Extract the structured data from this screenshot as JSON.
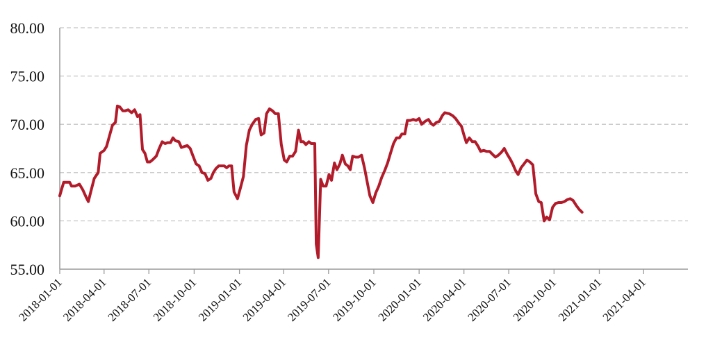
{
  "chart_data": {
    "type": "line",
    "title": "",
    "xlabel": "",
    "ylabel": "",
    "ylim": [
      55,
      80
    ],
    "y_ticks": [
      "55.00",
      "60.00",
      "65.00",
      "70.00",
      "75.00",
      "80.00"
    ],
    "x_tick_labels": [
      "2018-01-01",
      "2018-04-01",
      "2018-07-01",
      "2018-10-01",
      "2019-01-01",
      "2019-04-01",
      "2019-07-01",
      "2019-10-01",
      "2020-01-01",
      "2020-04-01",
      "2020-07-01",
      "2020-10-01",
      "2021-01-01",
      "2021-04-01"
    ],
    "x_range": [
      "2018-01-01",
      "2021-06-30"
    ],
    "grid": "horizontal dashed",
    "line_color": "#B11B2A",
    "series": [
      {
        "points": [
          [
            "2018-01-01",
            62.6
          ],
          [
            "2018-01-05",
            63.3
          ],
          [
            "2018-01-09",
            64.0
          ],
          [
            "2018-01-14",
            64.0
          ],
          [
            "2018-01-21",
            64.0
          ],
          [
            "2018-01-25",
            63.6
          ],
          [
            "2018-02-01",
            63.6
          ],
          [
            "2018-02-10",
            63.8
          ],
          [
            "2018-02-17",
            63.2
          ],
          [
            "2018-02-24",
            62.4
          ],
          [
            "2018-02-28",
            62.0
          ],
          [
            "2018-03-05",
            63.0
          ],
          [
            "2018-03-12",
            64.4
          ],
          [
            "2018-03-20",
            65.0
          ],
          [
            "2018-03-24",
            67.0
          ],
          [
            "2018-04-01",
            67.3
          ],
          [
            "2018-04-06",
            67.7
          ],
          [
            "2018-04-13",
            69.0
          ],
          [
            "2018-04-18",
            69.9
          ],
          [
            "2018-04-24",
            70.2
          ],
          [
            "2018-04-28",
            71.9
          ],
          [
            "2018-05-03",
            71.8
          ],
          [
            "2018-05-09",
            71.4
          ],
          [
            "2018-05-14",
            71.4
          ],
          [
            "2018-05-20",
            71.5
          ],
          [
            "2018-05-27",
            71.2
          ],
          [
            "2018-06-02",
            71.5
          ],
          [
            "2018-06-08",
            70.8
          ],
          [
            "2018-06-13",
            71.0
          ],
          [
            "2018-06-18",
            67.4
          ],
          [
            "2018-06-23",
            67.0
          ],
          [
            "2018-06-28",
            66.1
          ],
          [
            "2018-07-03",
            66.1
          ],
          [
            "2018-07-08",
            66.3
          ],
          [
            "2018-07-16",
            66.7
          ],
          [
            "2018-07-22",
            67.5
          ],
          [
            "2018-07-28",
            68.2
          ],
          [
            "2018-08-03",
            68.0
          ],
          [
            "2018-08-08",
            68.1
          ],
          [
            "2018-08-14",
            68.1
          ],
          [
            "2018-08-19",
            68.6
          ],
          [
            "2018-08-24",
            68.3
          ],
          [
            "2018-08-31",
            68.2
          ],
          [
            "2018-09-05",
            67.6
          ],
          [
            "2018-09-11",
            67.7
          ],
          [
            "2018-09-17",
            67.8
          ],
          [
            "2018-09-23",
            67.5
          ],
          [
            "2018-09-28",
            66.8
          ],
          [
            "2018-10-05",
            65.9
          ],
          [
            "2018-10-11",
            65.7
          ],
          [
            "2018-10-17",
            65.0
          ],
          [
            "2018-10-23",
            64.9
          ],
          [
            "2018-10-29",
            64.2
          ],
          [
            "2018-11-04",
            64.4
          ],
          [
            "2018-11-09",
            65.0
          ],
          [
            "2018-11-14",
            65.4
          ],
          [
            "2018-11-20",
            65.7
          ],
          [
            "2018-11-25",
            65.7
          ],
          [
            "2018-12-01",
            65.7
          ],
          [
            "2018-12-06",
            65.5
          ],
          [
            "2018-12-11",
            65.7
          ],
          [
            "2018-12-16",
            65.7
          ],
          [
            "2018-12-21",
            63.0
          ],
          [
            "2018-12-28",
            62.3
          ],
          [
            "2019-01-04",
            63.6
          ],
          [
            "2019-01-09",
            64.6
          ],
          [
            "2019-01-15",
            67.8
          ],
          [
            "2019-01-21",
            69.4
          ],
          [
            "2019-01-27",
            70.0
          ],
          [
            "2019-02-03",
            70.5
          ],
          [
            "2019-02-09",
            70.6
          ],
          [
            "2019-02-14",
            68.9
          ],
          [
            "2019-02-20",
            69.1
          ],
          [
            "2019-02-25",
            71.1
          ],
          [
            "2019-03-03",
            71.6
          ],
          [
            "2019-03-09",
            71.4
          ],
          [
            "2019-03-15",
            71.1
          ],
          [
            "2019-03-21",
            71.1
          ],
          [
            "2019-03-27",
            67.9
          ],
          [
            "2019-04-02",
            66.3
          ],
          [
            "2019-04-07",
            66.1
          ],
          [
            "2019-04-13",
            66.7
          ],
          [
            "2019-04-19",
            66.7
          ],
          [
            "2019-04-25",
            67.2
          ],
          [
            "2019-05-01",
            69.4
          ],
          [
            "2019-05-06",
            68.2
          ],
          [
            "2019-05-11",
            68.2
          ],
          [
            "2019-05-16",
            67.9
          ],
          [
            "2019-05-22",
            68.2
          ],
          [
            "2019-05-27",
            68.0
          ],
          [
            "2019-06-03",
            68.0
          ],
          [
            "2019-06-06",
            57.6
          ],
          [
            "2019-06-10",
            56.2
          ],
          [
            "2019-06-15",
            64.3
          ],
          [
            "2019-06-20",
            63.6
          ],
          [
            "2019-06-26",
            63.6
          ],
          [
            "2019-07-02",
            64.8
          ],
          [
            "2019-07-07",
            64.2
          ],
          [
            "2019-07-13",
            66.0
          ],
          [
            "2019-07-18",
            65.3
          ],
          [
            "2019-07-24",
            65.9
          ],
          [
            "2019-07-29",
            66.8
          ],
          [
            "2019-08-04",
            65.9
          ],
          [
            "2019-08-09",
            65.7
          ],
          [
            "2019-08-14",
            65.3
          ],
          [
            "2019-08-19",
            66.7
          ],
          [
            "2019-08-25",
            66.6
          ],
          [
            "2019-08-31",
            66.6
          ],
          [
            "2019-09-06",
            66.8
          ],
          [
            "2019-09-12",
            65.5
          ],
          [
            "2019-09-18",
            63.9
          ],
          [
            "2019-09-23",
            62.6
          ],
          [
            "2019-09-29",
            61.9
          ],
          [
            "2019-10-05",
            62.9
          ],
          [
            "2019-10-11",
            63.6
          ],
          [
            "2019-10-17",
            64.5
          ],
          [
            "2019-10-23",
            65.2
          ],
          [
            "2019-10-29",
            66.0
          ],
          [
            "2019-11-05",
            67.2
          ],
          [
            "2019-11-10",
            68.0
          ],
          [
            "2019-11-16",
            68.6
          ],
          [
            "2019-11-22",
            68.6
          ],
          [
            "2019-11-27",
            69.0
          ],
          [
            "2019-12-03",
            69.0
          ],
          [
            "2019-12-08",
            70.4
          ],
          [
            "2019-12-14",
            70.4
          ],
          [
            "2019-12-20",
            70.5
          ],
          [
            "2019-12-26",
            70.4
          ],
          [
            "2020-01-01",
            70.6
          ],
          [
            "2020-01-06",
            70.0
          ],
          [
            "2020-01-13",
            70.3
          ],
          [
            "2020-01-20",
            70.5
          ],
          [
            "2020-01-25",
            70.1
          ],
          [
            "2020-01-30",
            69.9
          ],
          [
            "2020-02-05",
            70.2
          ],
          [
            "2020-02-11",
            70.3
          ],
          [
            "2020-02-17",
            70.9
          ],
          [
            "2020-02-22",
            71.2
          ],
          [
            "2020-03-02",
            71.1
          ],
          [
            "2020-03-09",
            70.9
          ],
          [
            "2020-03-15",
            70.6
          ],
          [
            "2020-03-22",
            70.1
          ],
          [
            "2020-03-27",
            69.8
          ],
          [
            "2020-04-01",
            68.9
          ],
          [
            "2020-04-06",
            68.1
          ],
          [
            "2020-04-12",
            68.6
          ],
          [
            "2020-04-18",
            68.2
          ],
          [
            "2020-04-24",
            68.2
          ],
          [
            "2020-04-30",
            67.7
          ],
          [
            "2020-05-05",
            67.2
          ],
          [
            "2020-05-11",
            67.3
          ],
          [
            "2020-05-17",
            67.2
          ],
          [
            "2020-05-23",
            67.2
          ],
          [
            "2020-05-29",
            66.9
          ],
          [
            "2020-06-04",
            66.6
          ],
          [
            "2020-06-10",
            66.8
          ],
          [
            "2020-06-16",
            67.1
          ],
          [
            "2020-06-22",
            67.5
          ],
          [
            "2020-06-28",
            66.9
          ],
          [
            "2020-07-04",
            66.4
          ],
          [
            "2020-07-09",
            65.9
          ],
          [
            "2020-07-15",
            65.2
          ],
          [
            "2020-07-20",
            64.8
          ],
          [
            "2020-07-26",
            65.5
          ],
          [
            "2020-08-01",
            65.9
          ],
          [
            "2020-08-07",
            66.3
          ],
          [
            "2020-08-13",
            66.1
          ],
          [
            "2020-08-19",
            65.8
          ],
          [
            "2020-08-25",
            62.8
          ],
          [
            "2020-08-31",
            62.0
          ],
          [
            "2020-09-05",
            61.9
          ],
          [
            "2020-09-11",
            60.0
          ],
          [
            "2020-09-16",
            60.4
          ],
          [
            "2020-09-22",
            60.1
          ],
          [
            "2020-09-28",
            61.4
          ],
          [
            "2020-10-04",
            61.8
          ],
          [
            "2020-10-10",
            61.9
          ],
          [
            "2020-10-16",
            61.9
          ],
          [
            "2020-10-22",
            62.0
          ],
          [
            "2020-10-28",
            62.2
          ],
          [
            "2020-11-03",
            62.3
          ],
          [
            "2020-11-09",
            62.1
          ],
          [
            "2020-11-15",
            61.6
          ],
          [
            "2020-11-21",
            61.2
          ],
          [
            "2020-11-27",
            60.9
          ]
        ]
      }
    ]
  }
}
